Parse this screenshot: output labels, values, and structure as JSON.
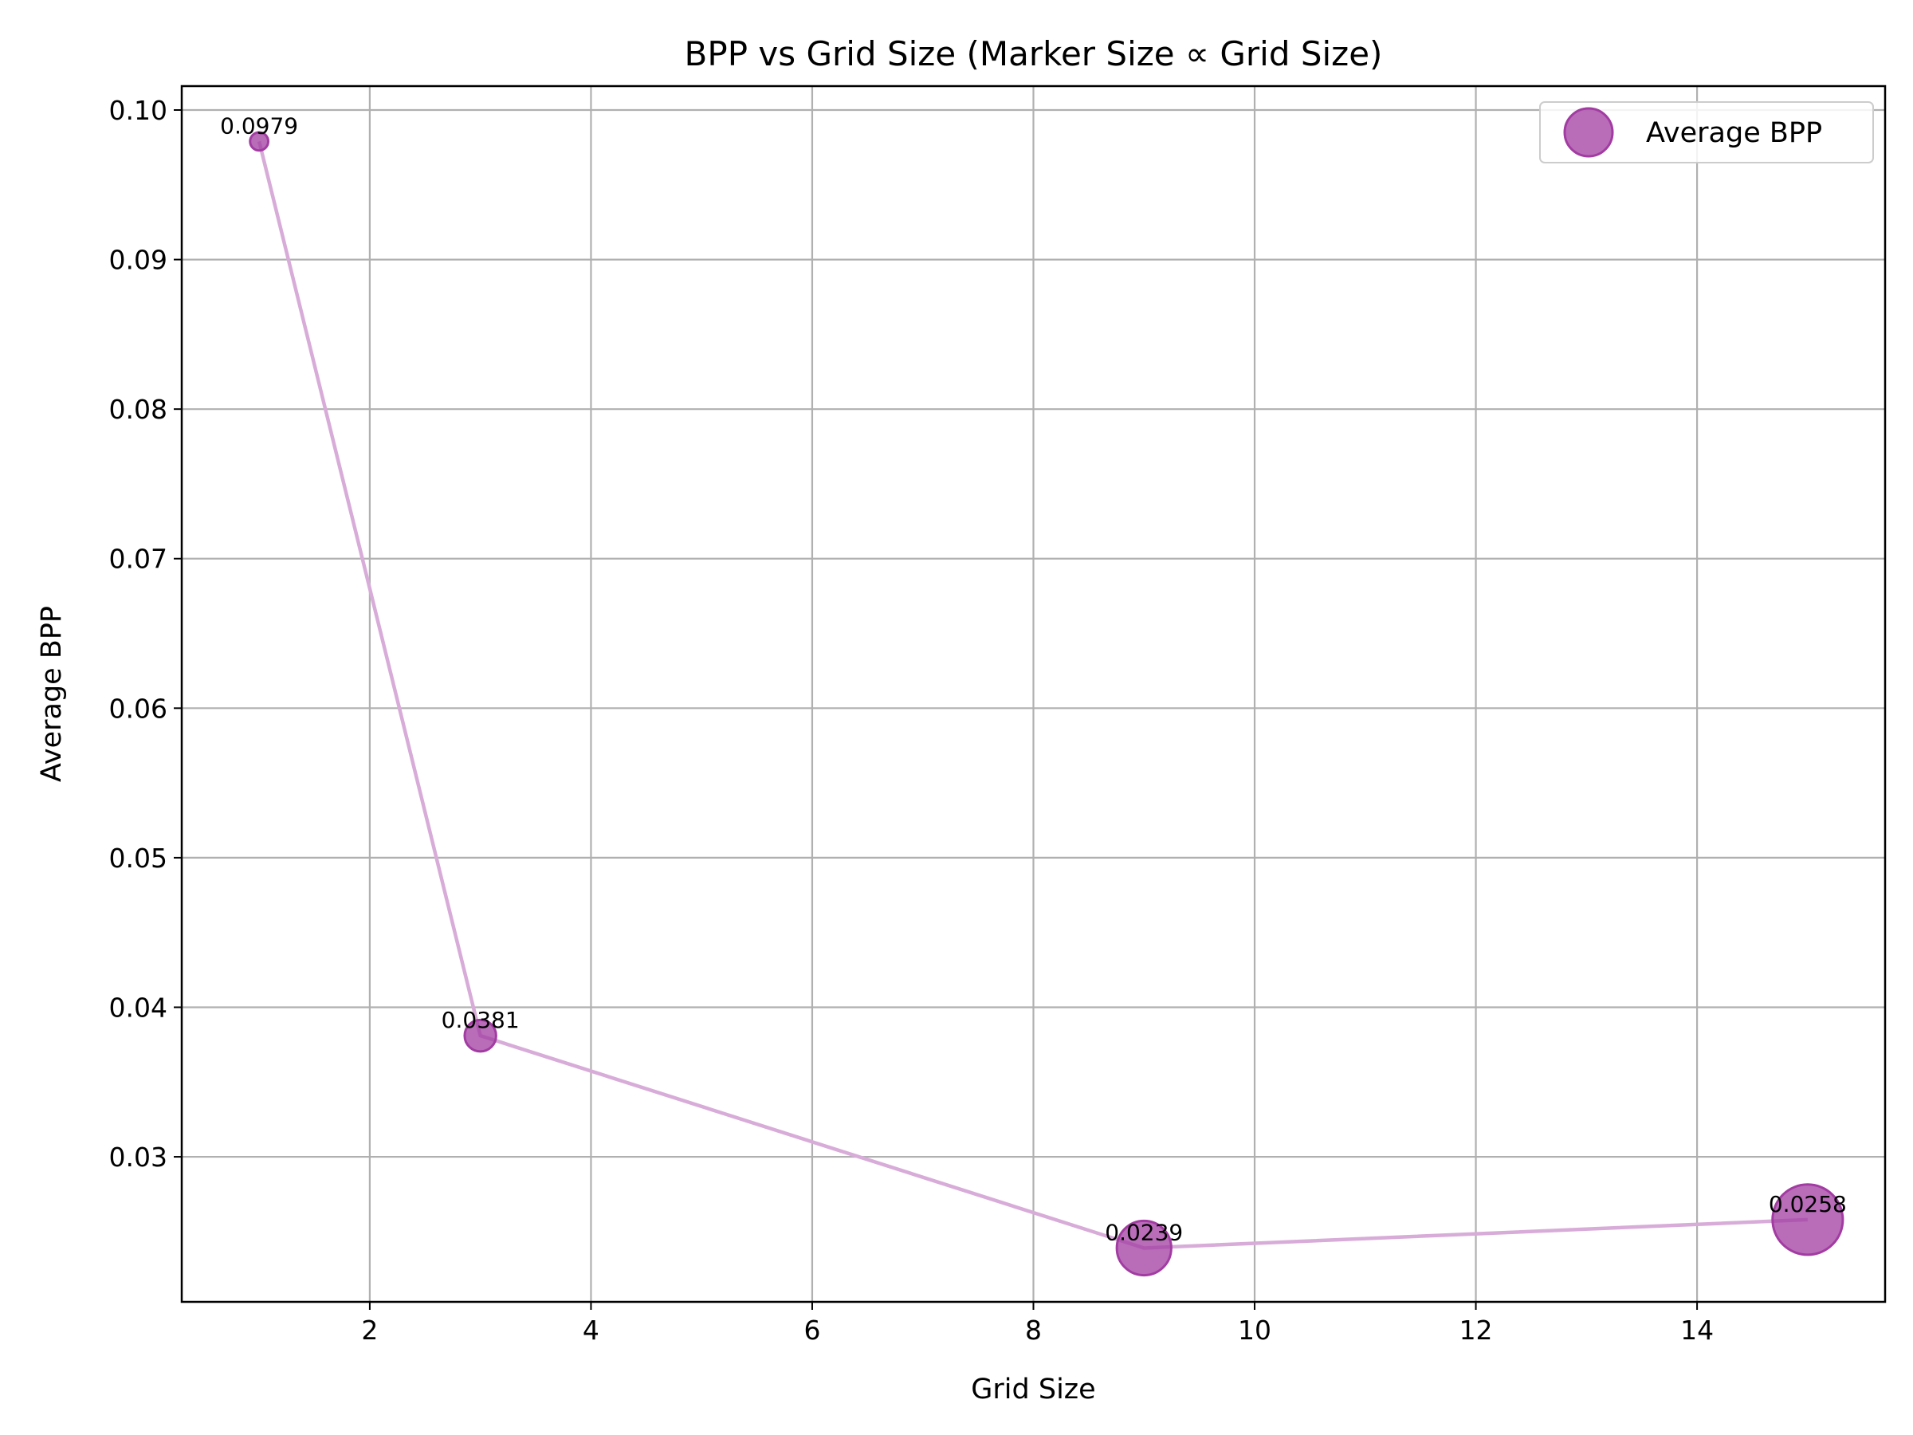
{
  "chart_data": {
    "type": "scatter",
    "title": "BPP vs Grid Size (Marker Size ∝ Grid Size)",
    "xlabel": "Grid Size",
    "ylabel": "Average BPP",
    "xlim": [
      0.3,
      15.7
    ],
    "ylim": [
      0.0203,
      0.1016
    ],
    "xticks": [
      2,
      4,
      6,
      8,
      10,
      12,
      14
    ],
    "xtick_labels": [
      "2",
      "4",
      "6",
      "8",
      "10",
      "12",
      "14"
    ],
    "yticks": [
      0.03,
      0.04,
      0.05,
      0.06,
      0.07,
      0.08,
      0.09,
      0.1
    ],
    "ytick_labels": [
      "0.03",
      "0.04",
      "0.05",
      "0.06",
      "0.07",
      "0.08",
      "0.09",
      "0.10"
    ],
    "grid": true,
    "legend_position": "top-right",
    "series": [
      {
        "name": "Average BPP",
        "x": [
          1,
          3,
          9,
          15
        ],
        "y": [
          0.0979,
          0.0381,
          0.0239,
          0.0258
        ],
        "data_labels": [
          "0.0979",
          "0.0381",
          "0.0239",
          "0.0258"
        ],
        "marker_color": "#a23ca2",
        "line_color": "#d8acd8",
        "marker_size_proportional_to": "x"
      }
    ]
  }
}
